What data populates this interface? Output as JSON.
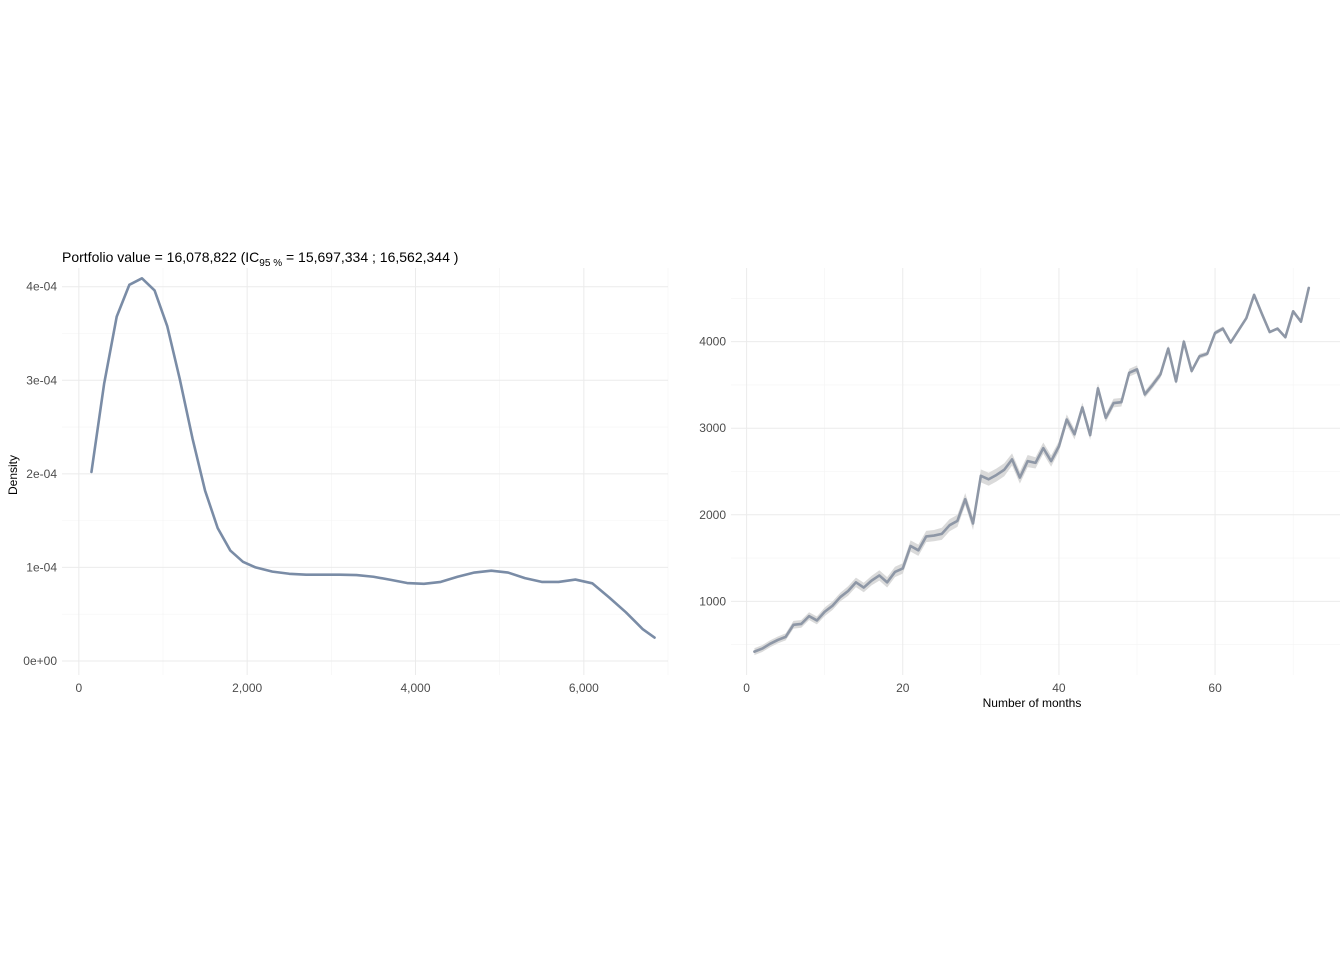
{
  "chart_data": [
    {
      "type": "line",
      "title": "Portfolio value = 16,078,822 (IC",
      "title_subscript": "95 %",
      "title_rest": " =  15,697,334 ; 16,562,344 )",
      "xlabel": "",
      "ylabel": "Density",
      "xlim": [
        -200,
        7000
      ],
      "ylim": [
        -1.5e-05,
        0.00042
      ],
      "x_ticks": [
        0,
        2000,
        4000,
        6000
      ],
      "x_tick_labels": [
        "0",
        "2,000",
        "4,000",
        "6,000"
      ],
      "y_ticks": [
        0,
        0.0001,
        0.0002,
        0.0003,
        0.0004
      ],
      "y_tick_labels": [
        "0e+00",
        "1e-04",
        "2e-04",
        "3e-04",
        "4e-04"
      ],
      "grid": true,
      "line_color": "#7a8ca6",
      "x": [
        150,
        300,
        450,
        600,
        750,
        900,
        1050,
        1200,
        1350,
        1500,
        1650,
        1800,
        1950,
        2100,
        2300,
        2500,
        2700,
        2900,
        3100,
        3300,
        3500,
        3700,
        3900,
        4100,
        4300,
        4500,
        4700,
        4900,
        5100,
        5300,
        5500,
        5700,
        5900,
        6100,
        6300,
        6500,
        6700,
        6840
      ],
      "y": [
        0.000202,
        0.000296,
        0.000368,
        0.000402,
        0.000409,
        0.000396,
        0.000358,
        0.000301,
        0.000238,
        0.000182,
        0.000142,
        0.000118,
        0.000106,
        0.0001,
        9.55e-05,
        9.32e-05,
        9.22e-05,
        9.22e-05,
        9.22e-05,
        9.18e-05,
        9e-05,
        8.68e-05,
        8.33e-05,
        8.25e-05,
        8.45e-05,
        9e-05,
        9.45e-05,
        9.65e-05,
        9.45e-05,
        8.85e-05,
        8.45e-05,
        8.45e-05,
        8.7e-05,
        8.3e-05,
        6.8e-05,
        5.2e-05,
        3.4e-05,
        2.5e-05
      ]
    },
    {
      "type": "line",
      "title": "",
      "xlabel": "Number of months",
      "ylabel": "",
      "xlim": [
        -2,
        76
      ],
      "ylim": [
        150,
        4850
      ],
      "x_ticks": [
        0,
        20,
        40,
        60
      ],
      "x_tick_labels": [
        "0",
        "20",
        "40",
        "60"
      ],
      "y_ticks": [
        1000,
        2000,
        3000,
        4000
      ],
      "y_tick_labels": [
        "1000",
        "2000",
        "3000",
        "4000"
      ],
      "grid": true,
      "line_color": "#8e97a6",
      "band_color": "#d6d6d6",
      "x": [
        1,
        2,
        3,
        4,
        5,
        6,
        7,
        8,
        9,
        10,
        11,
        12,
        13,
        14,
        15,
        16,
        17,
        18,
        19,
        20,
        21,
        22,
        23,
        24,
        25,
        26,
        27,
        28,
        29,
        30,
        31,
        32,
        33,
        34,
        35,
        36,
        37,
        38,
        39,
        40,
        41,
        42,
        43,
        44,
        45,
        46,
        47,
        48,
        49,
        50,
        51,
        52,
        53,
        54,
        55,
        56,
        57,
        58,
        59,
        60,
        61,
        62,
        63,
        64,
        65,
        66,
        67,
        68,
        69,
        70,
        71,
        72
      ],
      "y": [
        420,
        455,
        510,
        555,
        590,
        730,
        740,
        830,
        780,
        880,
        950,
        1050,
        1120,
        1220,
        1160,
        1240,
        1300,
        1220,
        1340,
        1380,
        1640,
        1590,
        1750,
        1760,
        1780,
        1880,
        1930,
        2180,
        1900,
        2450,
        2410,
        2460,
        2520,
        2640,
        2430,
        2620,
        2600,
        2770,
        2620,
        2790,
        3100,
        2930,
        3240,
        2920,
        3460,
        3120,
        3290,
        3300,
        3640,
        3680,
        3390,
        3500,
        3620,
        3920,
        3540,
        4000,
        3660,
        3830,
        3860,
        4100,
        4150,
        3990,
        4130,
        4270,
        4540,
        4320,
        4110,
        4150,
        4050,
        4350,
        4230,
        4620
      ],
      "band_half_width": [
        40,
        40,
        40,
        40,
        40,
        45,
        45,
        45,
        45,
        50,
        50,
        50,
        55,
        55,
        55,
        55,
        60,
        60,
        60,
        60,
        65,
        65,
        65,
        65,
        70,
        70,
        70,
        70,
        75,
        75,
        75,
        75,
        75,
        70,
        70,
        70,
        65,
        65,
        65,
        60,
        60,
        60,
        55,
        55,
        55,
        50,
        50,
        50,
        45,
        45,
        40,
        40,
        40,
        35,
        35,
        30,
        30,
        30,
        25,
        25,
        25,
        20,
        20,
        20,
        20,
        15,
        15,
        15,
        15,
        15,
        15,
        15
      ]
    }
  ]
}
